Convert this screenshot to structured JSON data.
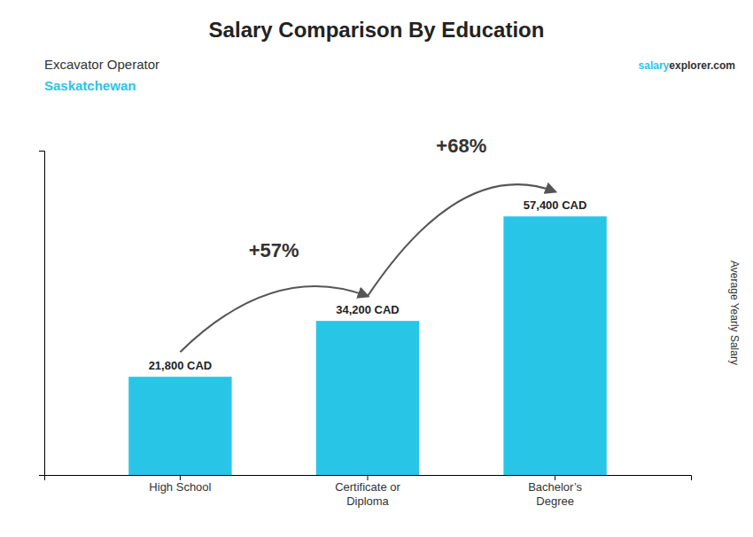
{
  "chart_data": {
    "type": "bar",
    "title": "Salary Comparison By Education",
    "subtitle": [
      "Excavator Operator",
      "Saskatchewan"
    ],
    "source": [
      "salary",
      "explorer.com"
    ],
    "y_label": "Average Yearly Salary",
    "categories": [
      "High School",
      "Certificate or\nDiploma",
      "Bachelor’s\nDegree"
    ],
    "values": [
      21800,
      34200,
      57400
    ],
    "value_labels": [
      "21,800 CAD",
      "34,200 CAD",
      "57,400 CAD"
    ],
    "data_labels": true,
    "color": "#29c5e6",
    "annotations": [
      "+57%",
      "+68%"
    ],
    "ylim": [
      0,
      72000
    ],
    "tick_labels": "x",
    "grid": false
  }
}
